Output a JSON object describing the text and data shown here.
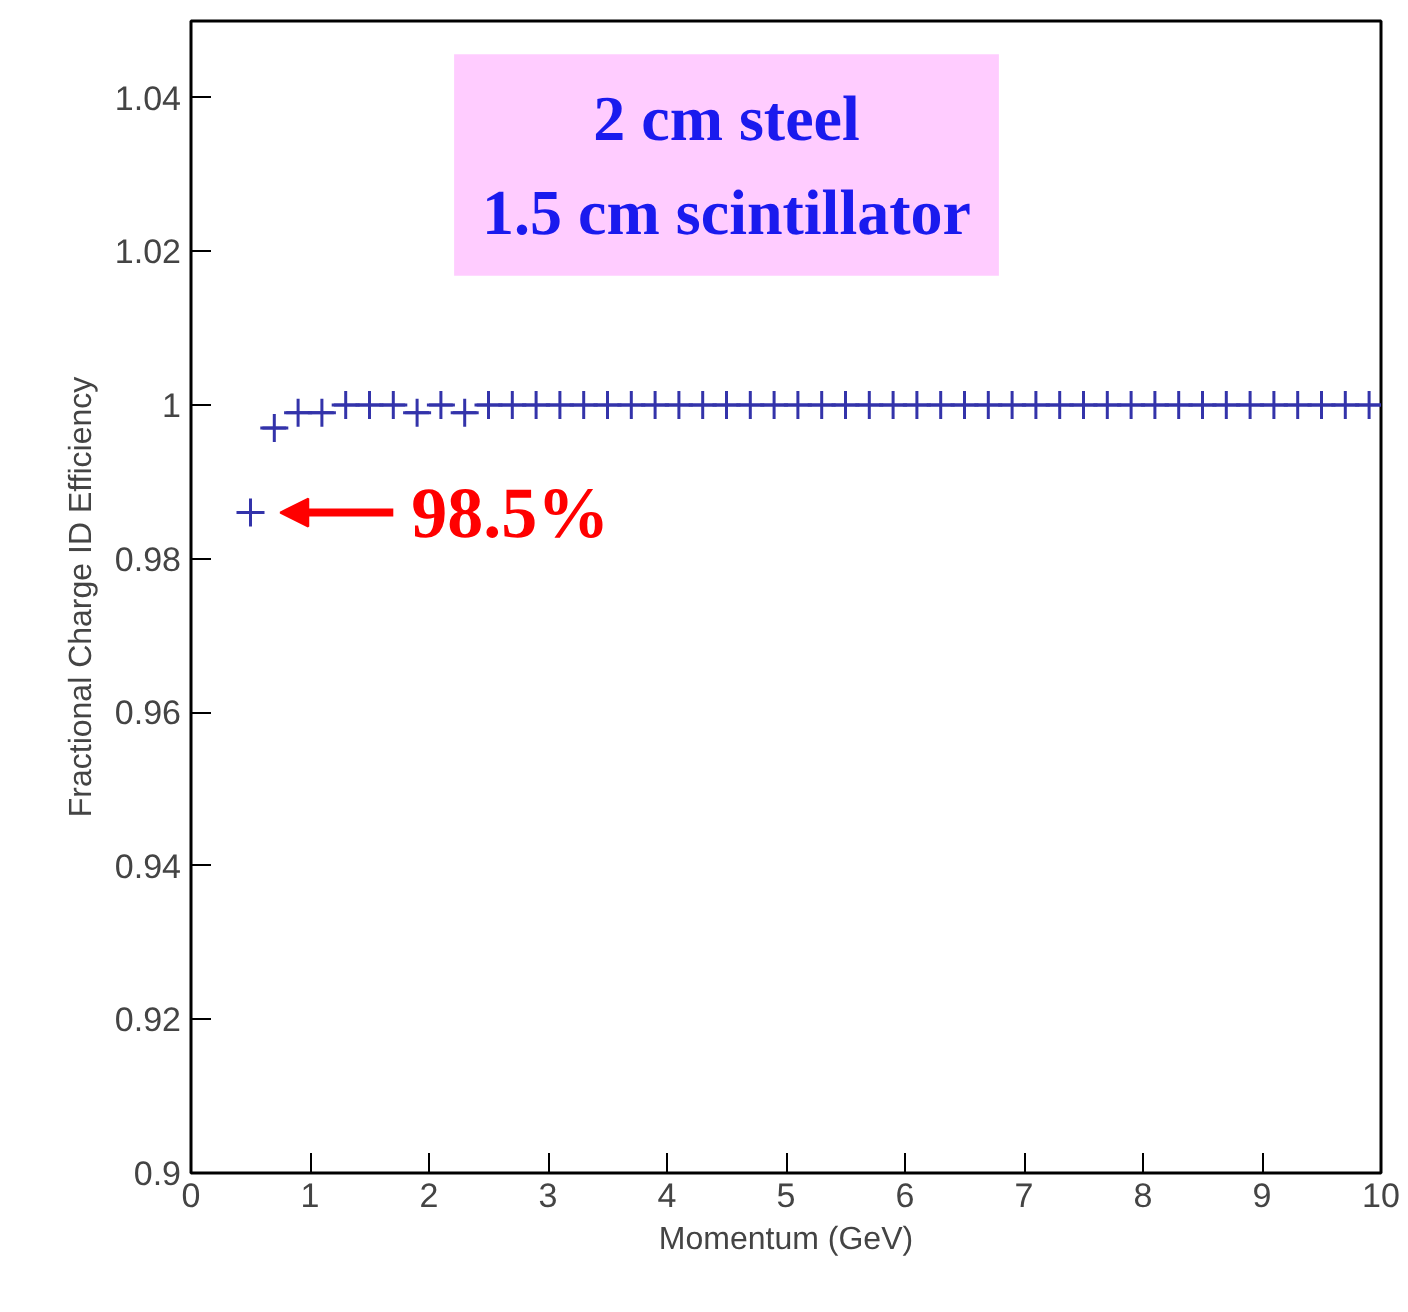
{
  "chart_data": {
    "type": "scatter",
    "xlabel": "Momentum (GeV)",
    "ylabel": "Fractional Charge ID Efficiency",
    "x": [
      0.5,
      0.7,
      0.9,
      1.1,
      1.3,
      1.5,
      1.7,
      1.9,
      2.1,
      2.3,
      2.5,
      2.7,
      2.9,
      3.1,
      3.3,
      3.5,
      3.7,
      3.9,
      4.1,
      4.3,
      4.5,
      4.7,
      4.9,
      5.1,
      5.3,
      5.5,
      5.7,
      5.9,
      6.1,
      6.3,
      6.5,
      6.7,
      6.9,
      7.1,
      7.3,
      7.5,
      7.7,
      7.9,
      8.1,
      8.3,
      8.5,
      8.7,
      8.9,
      9.1,
      9.3,
      9.5,
      9.7,
      9.9
    ],
    "series": [
      {
        "color": "#3333aa",
        "values": [
          0.986,
          0.997,
          0.999,
          0.999,
          1.0,
          1.0,
          1.0,
          0.999,
          1.0,
          0.999,
          1.0,
          1.0,
          1.0,
          1.0,
          1.0,
          1.0,
          1.0,
          1.0,
          1.0,
          1.0,
          1.0,
          1.0,
          1.0,
          1.0,
          1.0,
          1.0,
          1.0,
          1.0,
          1.0,
          1.0,
          1.0,
          1.0,
          1.0,
          1.0,
          1.0,
          1.0,
          1.0,
          1.0,
          1.0,
          1.0,
          1.0,
          1.0,
          1.0,
          1.0,
          1.0,
          1.0,
          1.0,
          1.0
        ],
        "xerrors": [
          0.1,
          0.1,
          0.1,
          0.1,
          0.1,
          0.1,
          0.1,
          0.1,
          0.1,
          0.1,
          0.1,
          0.1,
          0.1,
          0.1,
          0.1,
          0.1,
          0.1,
          0.1,
          0.1,
          0.1,
          0.1,
          0.1,
          0.1,
          0.1,
          0.1,
          0.1,
          0.1,
          0.1,
          0.1,
          0.1,
          0.1,
          0.1,
          0.1,
          0.1,
          0.1,
          0.1,
          0.1,
          0.1,
          0.1,
          0.1,
          0.1,
          0.1,
          0.1,
          0.1,
          0.1,
          0.1,
          0.1,
          0.1
        ]
      }
    ],
    "marker": "cross",
    "xlim": [
      0,
      10
    ],
    "xticks": [
      0,
      1,
      2,
      3,
      4,
      5,
      6,
      7,
      8,
      9,
      10
    ],
    "ylim": [
      0.9,
      1.05
    ],
    "yticks": [
      {
        "value": 0.9,
        "label": "0.9"
      },
      0.92,
      0.94,
      0.96,
      0.98,
      {
        "value": 1.0,
        "label": "1"
      },
      1.02,
      1.04
    ],
    "grid": false,
    "annotations": [
      "2 cm steel\n1.5 cm scintillator",
      {
        "text": "98.5%",
        "x": 0.5,
        "y": 0.986
      }
    ]
  }
}
